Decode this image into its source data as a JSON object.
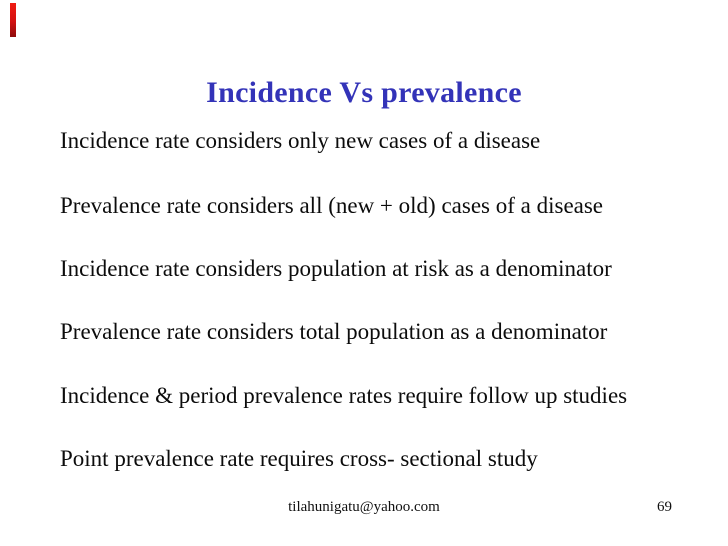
{
  "slide": {
    "title": "Incidence Vs prevalence",
    "body_lines": [
      "Incidence rate considers only new cases of a disease",
      "Prevalence rate considers all (new + old) cases of a disease",
      "Incidence rate considers population at risk as a denominator",
      "Prevalence rate considers total population as a denominator",
      "Incidence & period prevalence rates require follow up studies",
      "Point prevalence rate requires cross- sectional study"
    ],
    "footer": {
      "email": "tilahunigatu@yahoo.com",
      "page_number": "69"
    },
    "colors": {
      "title_blue": "#3333b8",
      "accent_red": "#d31111",
      "body_text": "#0c0c0c",
      "background": "#ffffff"
    }
  }
}
